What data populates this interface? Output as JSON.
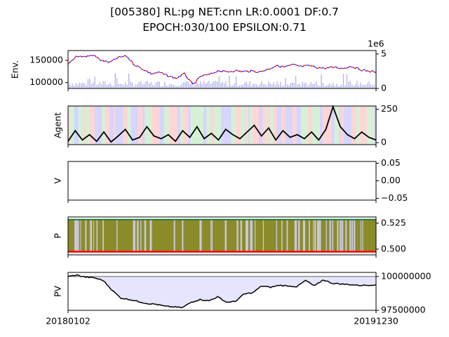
{
  "title_line1": "[005380] RL:pg NET:cnn LR:0.0001 DF:0.7",
  "title_line2": "EPOCH:030/100 EPSILON:0.71",
  "x_tick_labels": [
    "20180102",
    "20191230"
  ],
  "chart_data": [
    {
      "type": "line",
      "ylabel": "Env.",
      "yticks": [
        "150000",
        "100000"
      ],
      "y_ticks_values": [
        150000,
        100000
      ],
      "ylim": [
        87000,
        172000
      ],
      "right_axis_ticks": [
        "5",
        "0"
      ],
      "right_axis_offset_text": "1e6",
      "right_axis_ylim": [
        0,
        5500000
      ],
      "series": [
        {
          "role": "price",
          "colors": [
            "#ff0000",
            "#0000ff"
          ],
          "values": [
            140000,
            160000,
            158000,
            162000,
            150000,
            145000,
            156000,
            160000,
            140000,
            130000,
            120000,
            123000,
            115000,
            110000,
            120000,
            95000,
            115000,
            118000,
            127000,
            124000,
            127000,
            125000,
            126000,
            124000,
            130000,
            138000,
            135000,
            140000,
            136000,
            138000,
            134000,
            132000,
            135000,
            132000,
            137000,
            130000,
            126000,
            124000
          ]
        },
        {
          "role": "volume",
          "color": "#b5b5ee"
        }
      ]
    },
    {
      "type": "line",
      "ylabel": "Agent",
      "yticks": [
        "250",
        "0"
      ],
      "y_ticks_values": [
        250,
        0
      ],
      "ylim": [
        -15,
        275
      ],
      "series": [
        {
          "role": "action",
          "color": "#000000",
          "values": [
            10,
            90,
            20,
            60,
            10,
            80,
            5,
            50,
            100,
            20,
            40,
            120,
            50,
            30,
            60,
            10,
            90,
            40,
            120,
            30,
            70,
            20,
            100,
            60,
            30,
            80,
            130,
            50,
            110,
            20,
            90,
            40,
            60,
            30,
            80,
            20,
            100,
            270,
            120,
            60,
            30,
            80,
            40,
            20
          ]
        }
      ],
      "background_band_colors": [
        "#ffb3b3",
        "#b3b3ff",
        "#b3e6b3"
      ]
    },
    {
      "type": "line",
      "ylabel": "V",
      "yticks": [
        "0.05",
        "0.00",
        "−0.05"
      ],
      "y_ticks_values": [
        0.05,
        0.0,
        -0.05
      ],
      "ylim": [
        -0.055,
        0.055
      ],
      "series": []
    },
    {
      "type": "area",
      "ylabel": "P",
      "yticks": [
        "0.525",
        "0.500"
      ],
      "y_ticks_values": [
        0.525,
        0.5
      ],
      "ylim": [
        0.4945,
        0.531
      ],
      "series": [
        {
          "role": "fill",
          "color": "#8b8b2a"
        },
        {
          "role": "upper_line",
          "color": "#1f7a3a",
          "value": 0.5285
        },
        {
          "role": "lower_line",
          "color": "#ff0000",
          "value": 0.4975
        }
      ]
    },
    {
      "type": "line",
      "ylabel": "PV",
      "yticks": [
        "100000000",
        "97500000"
      ],
      "y_ticks_values": [
        100000000,
        97500000
      ],
      "ylim": [
        97500000,
        100300000
      ],
      "baseline": 100000000,
      "series": [
        {
          "role": "portfolio_value",
          "color": "#000000",
          "fill": "#e5e5ff",
          "values": [
            100000000,
            100100000,
            99950000,
            99900000,
            99700000,
            99000000,
            98400000,
            98300000,
            98150000,
            98000000,
            97950000,
            97800000,
            97750000,
            97700000,
            98100000,
            98300000,
            98200000,
            98500000,
            98100000,
            98150000,
            98700000,
            98800000,
            99300000,
            99200000,
            99350000,
            99300000,
            99250000,
            99700000,
            99300000,
            99750000,
            99500000,
            99450000,
            99400000,
            99350000,
            99350000,
            99400000
          ]
        }
      ]
    }
  ]
}
